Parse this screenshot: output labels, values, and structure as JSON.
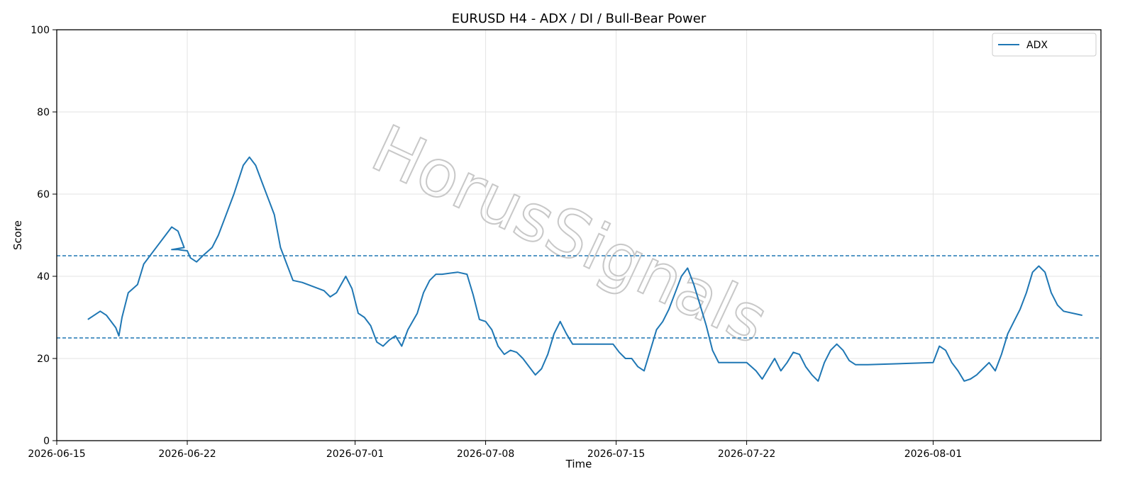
{
  "chart_data": {
    "type": "line",
    "title": "EURUSD H4 - ADX / DI / Bull-Bear Power",
    "xlabel": "Time",
    "ylabel": "Score",
    "ylim": [
      0,
      100
    ],
    "yticks": [
      0,
      20,
      40,
      60,
      80,
      100
    ],
    "xlim": [
      "2026-06-15T00:00",
      "2026-08-10T00:00"
    ],
    "xticks": [
      "2026-06-15",
      "2026-06-22",
      "2026-07-01",
      "2026-07-08",
      "2026-07-15",
      "2026-07-22",
      "2026-08-01"
    ],
    "grid": true,
    "legend_position": "top-right",
    "reference_lines": [
      45,
      25
    ],
    "watermark": "HorusSignals",
    "series": [
      {
        "name": "ADX",
        "color": "#1f77b4",
        "points": [
          [
            "2026-06-16T16:00",
            29.5
          ],
          [
            "2026-06-17T08:00",
            31.5
          ],
          [
            "2026-06-17T16:00",
            30.5
          ],
          [
            "2026-06-18T04:00",
            27.5
          ],
          [
            "2026-06-18T08:00",
            25.5
          ],
          [
            "2026-06-18T12:00",
            30
          ],
          [
            "2026-06-18T20:00",
            36
          ],
          [
            "2026-06-19T08:00",
            38
          ],
          [
            "2026-06-19T16:00",
            43
          ],
          [
            "2026-06-20T04:00",
            46
          ],
          [
            "2026-06-21T04:00",
            52
          ],
          [
            "2026-06-21T12:00",
            51
          ],
          [
            "2026-06-21T20:00",
            47
          ],
          [
            "2026-06-21T04:00",
            46.5
          ],
          [
            "2026-06-21T12:00",
            46.5
          ],
          [
            "2026-06-21T20:00",
            46.3
          ],
          [
            "2026-06-22T00:00",
            46.2
          ],
          [
            "2026-06-22T04:00",
            44.5
          ],
          [
            "2026-06-22T12:00",
            43.5
          ],
          [
            "2026-06-22T20:00",
            45
          ],
          [
            "2026-06-23T08:00",
            47
          ],
          [
            "2026-06-23T16:00",
            50
          ],
          [
            "2026-06-24T00:00",
            54
          ],
          [
            "2026-06-24T12:00",
            60
          ],
          [
            "2026-06-25T00:00",
            67
          ],
          [
            "2026-06-25T08:00",
            69
          ],
          [
            "2026-06-25T16:00",
            67
          ],
          [
            "2026-06-26T00:00",
            63
          ],
          [
            "2026-06-26T08:00",
            59
          ],
          [
            "2026-06-26T16:00",
            55
          ],
          [
            "2026-06-27T00:00",
            47
          ],
          [
            "2026-06-27T08:00",
            43
          ],
          [
            "2026-06-27T16:00",
            39
          ],
          [
            "2026-06-28T04:00",
            38.5
          ],
          [
            "2026-06-29T08:00",
            36.5
          ],
          [
            "2026-06-29T16:00",
            35
          ],
          [
            "2026-06-30T00:00",
            36
          ],
          [
            "2026-06-30T12:00",
            40
          ],
          [
            "2026-06-30T20:00",
            37
          ],
          [
            "2026-07-01T04:00",
            31
          ],
          [
            "2026-07-01T12:00",
            30
          ],
          [
            "2026-07-01T20:00",
            28
          ],
          [
            "2026-07-02T04:00",
            24
          ],
          [
            "2026-07-02T12:00",
            23
          ],
          [
            "2026-07-02T20:00",
            24.5
          ],
          [
            "2026-07-03T04:00",
            25.5
          ],
          [
            "2026-07-03T12:00",
            23
          ],
          [
            "2026-07-03T20:00",
            27
          ],
          [
            "2026-07-04T08:00",
            31
          ],
          [
            "2026-07-04T16:00",
            36
          ],
          [
            "2026-07-05T00:00",
            39
          ],
          [
            "2026-07-05T08:00",
            40.5
          ],
          [
            "2026-07-05T16:00",
            40.5
          ],
          [
            "2026-07-06T12:00",
            41
          ],
          [
            "2026-07-07T00:00",
            40.5
          ],
          [
            "2026-07-07T08:00",
            35.5
          ],
          [
            "2026-07-07T16:00",
            29.5
          ],
          [
            "2026-07-08T00:00",
            29
          ],
          [
            "2026-07-08T08:00",
            27
          ],
          [
            "2026-07-08T16:00",
            23
          ],
          [
            "2026-07-09T00:00",
            21
          ],
          [
            "2026-07-09T08:00",
            22
          ],
          [
            "2026-07-09T16:00",
            21.5
          ],
          [
            "2026-07-10T00:00",
            20
          ],
          [
            "2026-07-10T08:00",
            18
          ],
          [
            "2026-07-10T16:00",
            16
          ],
          [
            "2026-07-11T00:00",
            17.5
          ],
          [
            "2026-07-11T08:00",
            21
          ],
          [
            "2026-07-11T16:00",
            26
          ],
          [
            "2026-07-12T00:00",
            29
          ],
          [
            "2026-07-12T08:00",
            26
          ],
          [
            "2026-07-12T16:00",
            23.5
          ],
          [
            "2026-07-13T12:00",
            23.5
          ],
          [
            "2026-07-14T20:00",
            23.5
          ],
          [
            "2026-07-15T04:00",
            21.5
          ],
          [
            "2026-07-15T12:00",
            20
          ],
          [
            "2026-07-15T20:00",
            20
          ],
          [
            "2026-07-16T04:00",
            18
          ],
          [
            "2026-07-16T12:00",
            17
          ],
          [
            "2026-07-16T20:00",
            22
          ],
          [
            "2026-07-17T04:00",
            27
          ],
          [
            "2026-07-17T12:00",
            29
          ],
          [
            "2026-07-17T20:00",
            32
          ],
          [
            "2026-07-18T04:00",
            36
          ],
          [
            "2026-07-18T12:00",
            40
          ],
          [
            "2026-07-18T20:00",
            42
          ],
          [
            "2026-07-19T04:00",
            38
          ],
          [
            "2026-07-19T12:00",
            33
          ],
          [
            "2026-07-19T20:00",
            28
          ],
          [
            "2026-07-20T04:00",
            22
          ],
          [
            "2026-07-20T12:00",
            19
          ],
          [
            "2026-07-21T00:00",
            19
          ],
          [
            "2026-07-22T00:00",
            19
          ],
          [
            "2026-07-22T12:00",
            17
          ],
          [
            "2026-07-22T20:00",
            15
          ],
          [
            "2026-07-23T04:00",
            17.5
          ],
          [
            "2026-07-23T12:00",
            20
          ],
          [
            "2026-07-23T20:00",
            17
          ],
          [
            "2026-07-24T04:00",
            19
          ],
          [
            "2026-07-24T12:00",
            21.5
          ],
          [
            "2026-07-24T20:00",
            21
          ],
          [
            "2026-07-25T04:00",
            18
          ],
          [
            "2026-07-25T12:00",
            16
          ],
          [
            "2026-07-25T20:00",
            14.5
          ],
          [
            "2026-07-26T04:00",
            19
          ],
          [
            "2026-07-26T12:00",
            22
          ],
          [
            "2026-07-26T20:00",
            23.5
          ],
          [
            "2026-07-27T04:00",
            22
          ],
          [
            "2026-07-27T12:00",
            19.5
          ],
          [
            "2026-07-27T20:00",
            18.5
          ],
          [
            "2026-07-28T12:00",
            18.5
          ],
          [
            "2026-07-30T00:00",
            18.7
          ],
          [
            "2026-08-01T00:00",
            19
          ],
          [
            "2026-08-01T08:00",
            23
          ],
          [
            "2026-08-01T16:00",
            22
          ],
          [
            "2026-08-02T00:00",
            19
          ],
          [
            "2026-08-02T08:00",
            17
          ],
          [
            "2026-08-02T16:00",
            14.5
          ],
          [
            "2026-08-03T00:00",
            15
          ],
          [
            "2026-08-03T08:00",
            16
          ],
          [
            "2026-08-03T16:00",
            17.5
          ],
          [
            "2026-08-04T00:00",
            19
          ],
          [
            "2026-08-04T08:00",
            17
          ],
          [
            "2026-08-04T16:00",
            21
          ],
          [
            "2026-08-05T00:00",
            26
          ],
          [
            "2026-08-05T08:00",
            29
          ],
          [
            "2026-08-05T16:00",
            32
          ],
          [
            "2026-08-06T00:00",
            36
          ],
          [
            "2026-08-06T08:00",
            41
          ],
          [
            "2026-08-06T16:00",
            42.5
          ],
          [
            "2026-08-07T00:00",
            41
          ],
          [
            "2026-08-07T08:00",
            36
          ],
          [
            "2026-08-07T16:00",
            33
          ],
          [
            "2026-08-08T00:00",
            31.5
          ],
          [
            "2026-08-09T00:00",
            30.5
          ]
        ]
      }
    ]
  }
}
